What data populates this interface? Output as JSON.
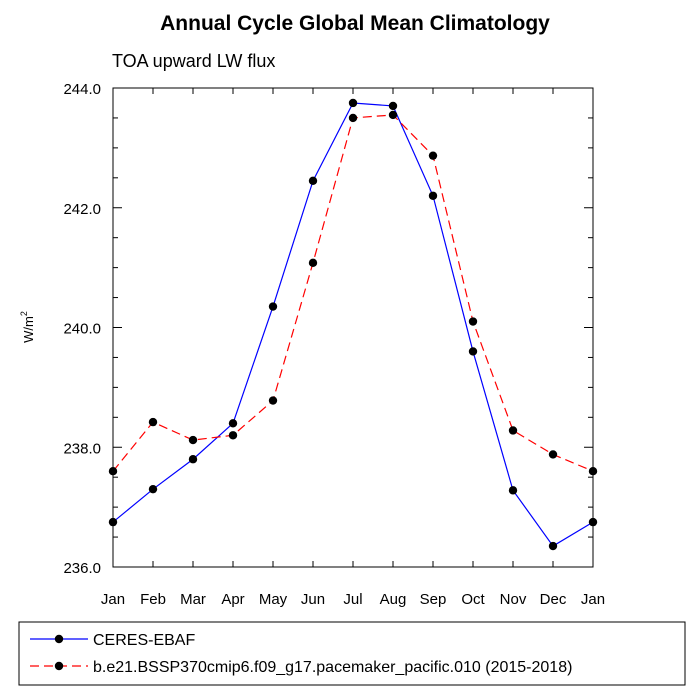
{
  "chart_data": {
    "type": "line",
    "title": "Annual Cycle Global Mean Climatology",
    "subtitle": "TOA upward LW flux",
    "ylabel": "W/m",
    "ylabel_superscript": "2",
    "xlabel": "",
    "categories": [
      "Jan",
      "Feb",
      "Mar",
      "Apr",
      "May",
      "Jun",
      "Jul",
      "Aug",
      "Sep",
      "Oct",
      "Nov",
      "Dec",
      "Jan"
    ],
    "ylim": [
      236.0,
      244.0
    ],
    "yticks": [
      236.0,
      238.0,
      240.0,
      242.0,
      244.0
    ],
    "ytick_labels": [
      "236.0",
      "238.0",
      "240.0",
      "242.0",
      "244.0"
    ],
    "grid": false,
    "legend_position": "bottom",
    "series": [
      {
        "name": "CERES-EBAF",
        "color": "#0000ff",
        "line_style": "solid",
        "marker": "filled-circle",
        "values": [
          236.75,
          237.3,
          237.8,
          238.4,
          240.35,
          242.45,
          243.75,
          243.7,
          242.2,
          239.6,
          237.28,
          236.35,
          236.75
        ]
      },
      {
        "name": "b.e21.BSSP370cmip6.f09_g17.pacemaker_pacific.010 (2015-2018)",
        "color": "#ff0000",
        "line_style": "dashed",
        "marker": "filled-circle",
        "values": [
          237.6,
          238.42,
          238.12,
          238.2,
          238.78,
          241.08,
          243.5,
          243.55,
          242.87,
          240.1,
          238.28,
          237.88,
          237.6
        ]
      }
    ]
  }
}
